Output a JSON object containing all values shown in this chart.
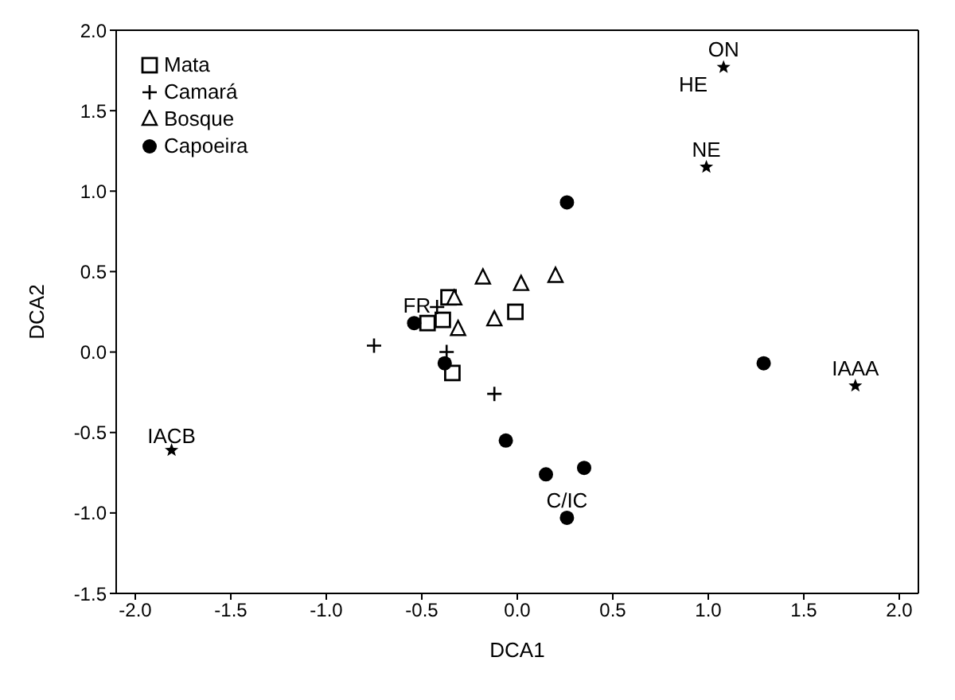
{
  "chart_data": {
    "type": "scatter",
    "xlabel": "DCA1",
    "ylabel": "DCA2",
    "legend": "top left",
    "xlim": [
      -2.1,
      2.1
    ],
    "ylim": [
      -1.5,
      2.0
    ],
    "xticks": [
      {
        "value": -2,
        "label": "-2.0"
      },
      {
        "value": -1.5,
        "label": "-1.5"
      },
      {
        "value": -1,
        "label": "-1.0"
      },
      {
        "value": -0.5,
        "label": "-0.5"
      },
      {
        "value": 0,
        "label": "0.0"
      },
      {
        "value": 0.5,
        "label": "0.5"
      },
      {
        "value": 1,
        "label": "1.0"
      },
      {
        "value": 1.5,
        "label": "1.5"
      },
      {
        "value": 2,
        "label": "2.0"
      }
    ],
    "yticks": [
      {
        "value": -1.5,
        "label": "-1.5"
      },
      {
        "value": -1,
        "label": "-1.0"
      },
      {
        "value": -0.5,
        "label": "-0.5"
      },
      {
        "value": 0,
        "label": "0.0"
      },
      {
        "value": 0.5,
        "label": "0.5"
      },
      {
        "value": 1,
        "label": "1.0"
      },
      {
        "value": 1.5,
        "label": "1.5"
      },
      {
        "value": 2,
        "label": "2.0"
      }
    ],
    "series": [
      {
        "name": "Mata",
        "color": "#000000",
        "marker": "square",
        "x": [
          -0.47,
          -0.39,
          -0.36,
          -0.01,
          -0.34
        ],
        "values": [
          0.18,
          0.2,
          0.34,
          0.25,
          -0.13
        ]
      },
      {
        "name": "Camará",
        "color": "#000000",
        "marker": "cross",
        "x": [
          -0.42,
          -0.75,
          -0.37,
          -0.12
        ],
        "values": [
          0.28,
          0.04,
          0.0,
          -0.26
        ]
      },
      {
        "name": "Bosque",
        "color": "#000000",
        "marker": "triangle",
        "x": [
          -0.18,
          0.02,
          0.2,
          -0.33,
          -0.31,
          -0.12
        ],
        "values": [
          0.46,
          0.42,
          0.47,
          0.33,
          0.14,
          0.2
        ]
      },
      {
        "name": "Capoeira",
        "color": "#000000",
        "marker": "circle",
        "x": [
          -0.54,
          -0.38,
          0.26,
          1.29,
          -0.06,
          0.15,
          0.35,
          0.26
        ],
        "values": [
          0.18,
          -0.07,
          0.93,
          -0.07,
          -0.55,
          -0.76,
          -0.72,
          -1.03
        ]
      },
      {
        "color": "#000000",
        "marker": "star",
        "x": [
          1.08,
          0.99,
          1.77,
          -1.81
        ],
        "values": [
          1.77,
          1.15,
          -0.21,
          -0.61
        ]
      }
    ],
    "annotations": [
      {
        "text": "ON",
        "x": 1.08,
        "y": 1.77
      },
      {
        "text": "HE",
        "x": 1.08,
        "y": 1.77
      },
      {
        "text": "NE",
        "x": 0.99,
        "y": 1.15
      },
      {
        "text": "IAAA",
        "x": 1.77,
        "y": -0.21
      },
      {
        "text": "IACB",
        "x": -1.81,
        "y": -0.61
      },
      {
        "text": "FR",
        "x": -0.42,
        "y": 0.28
      },
      {
        "text": "C/IC",
        "x": 0.26,
        "y": -1.03
      }
    ]
  }
}
